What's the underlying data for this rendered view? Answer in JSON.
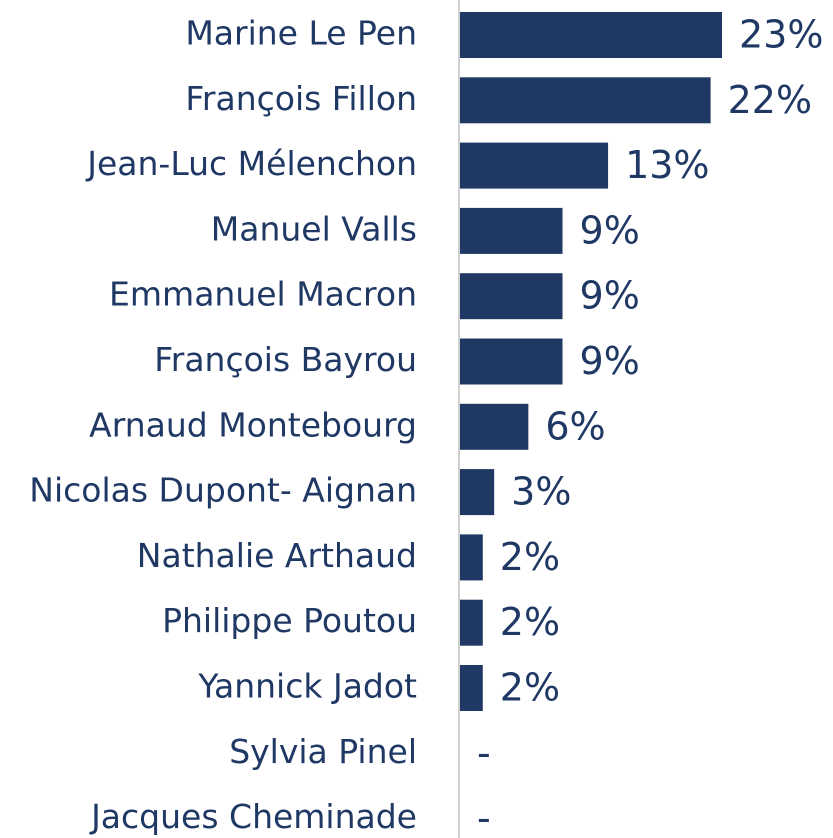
{
  "chart_data": {
    "type": "hbar",
    "categories": [
      "Marine Le Pen",
      "François Fillon",
      "Jean-Luc Mélenchon",
      "Manuel Valls",
      "Emmanuel Macron",
      "François Bayrou",
      "Arnaud Montebourg",
      "Nicolas Dupont- Aignan",
      "Nathalie Arthaud",
      "Philippe Poutou",
      "Yannick Jadot",
      "Sylvia Pinel",
      "Jacques Cheminade"
    ],
    "values": [
      23,
      22,
      13,
      9,
      9,
      9,
      6,
      3,
      2,
      2,
      2,
      null,
      null
    ],
    "value_labels": [
      "23%",
      "22%",
      "13%",
      "9%",
      "9%",
      "9%",
      "6%",
      "3%",
      "2%",
      "2%",
      "2%",
      "-",
      "-"
    ],
    "color": "#1f3864"
  }
}
